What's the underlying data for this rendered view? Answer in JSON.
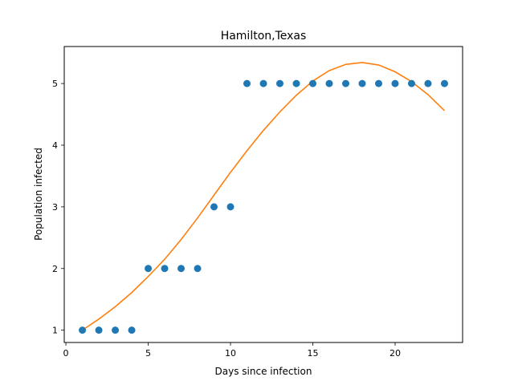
{
  "chart_data": {
    "type": "scatter",
    "title": "Hamilton,Texas",
    "xlabel": "Days since infection",
    "ylabel": "Population infected",
    "xlim": [
      -0.1,
      24.1
    ],
    "ylim": [
      0.8,
      5.6
    ],
    "xticks": [
      0,
      5,
      10,
      15,
      20
    ],
    "yticks": [
      1,
      2,
      3,
      4,
      5
    ],
    "grid": false,
    "series": [
      {
        "kind": "scatter",
        "color": "#1f77b4",
        "x": [
          1,
          2,
          3,
          4,
          5,
          6,
          7,
          8,
          9,
          10,
          11,
          12,
          13,
          14,
          15,
          16,
          17,
          18,
          19,
          20,
          21,
          22,
          23
        ],
        "y": [
          1,
          1,
          1,
          1,
          2,
          2,
          2,
          2,
          3,
          3,
          5,
          5,
          5,
          5,
          5,
          5,
          5,
          5,
          5,
          5,
          5,
          5,
          5
        ]
      },
      {
        "kind": "line",
        "color": "#ff7f0e",
        "x": [
          1,
          2,
          3,
          4,
          5,
          6,
          7,
          8,
          9,
          10,
          11,
          12,
          13,
          14,
          15,
          16,
          17,
          18,
          19,
          20,
          21,
          22,
          23
        ],
        "y": [
          1.0,
          1.18,
          1.38,
          1.61,
          1.87,
          2.15,
          2.47,
          2.82,
          3.19,
          3.56,
          3.91,
          4.24,
          4.54,
          4.81,
          5.04,
          5.21,
          5.31,
          5.34,
          5.3,
          5.19,
          5.03,
          4.82,
          4.56
        ]
      }
    ]
  }
}
